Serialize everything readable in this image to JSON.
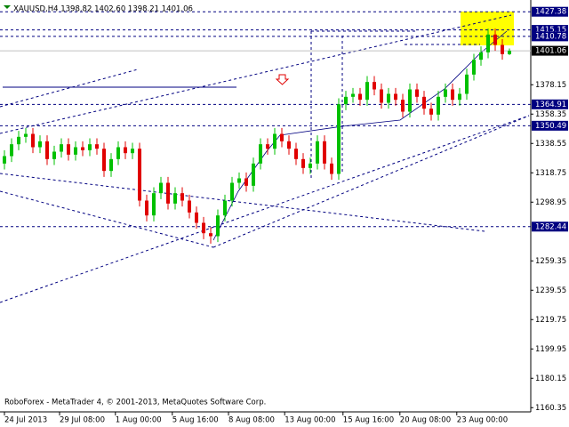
{
  "chart_data": {
    "type": "candlestick",
    "title": "XAUUSD,H4  1398.82 1402.60 1398.21 1401.06",
    "footer": "RoboForex - MetaTrader 4, © 2001-2013, MetaQuotes Software Corp.",
    "up_color": "#00c000",
    "down_color": "#e00000",
    "level_color": "#000080",
    "last_color": "#000000",
    "open": [
      1325,
      1330,
      1338,
      1343,
      1345,
      1336,
      1340,
      1328,
      1333,
      1338,
      1331,
      1336,
      1334,
      1338,
      1335,
      1320,
      1328,
      1336,
      1332,
      1335,
      1300,
      1290,
      1305,
      1312,
      1298,
      1305,
      1300,
      1292,
      1285,
      1278,
      1276,
      1290,
      1300,
      1312,
      1315,
      1310,
      1325,
      1338,
      1335,
      1345,
      1340,
      1335,
      1328,
      1322,
      1325,
      1340,
      1325,
      1318,
      1365,
      1370,
      1372,
      1368,
      1380,
      1375,
      1366,
      1372,
      1368,
      1360,
      1375,
      1370,
      1362,
      1358,
      1370,
      1375,
      1368,
      1372,
      1385,
      1395,
      1400,
      1412,
      1405,
      1398.82
    ],
    "high": [
      1334,
      1342,
      1347,
      1349,
      1349,
      1344,
      1344,
      1337,
      1342,
      1342,
      1340,
      1340,
      1342,
      1342,
      1339,
      1332,
      1340,
      1340,
      1339,
      1339,
      1304,
      1309,
      1316,
      1316,
      1309,
      1309,
      1304,
      1296,
      1289,
      1282,
      1294,
      1304,
      1316,
      1319,
      1319,
      1329,
      1342,
      1342,
      1349,
      1349,
      1344,
      1339,
      1332,
      1329,
      1344,
      1344,
      1329,
      1369,
      1374,
      1376,
      1376,
      1384,
      1384,
      1379,
      1376,
      1376,
      1372,
      1379,
      1379,
      1374,
      1366,
      1374,
      1379,
      1379,
      1376,
      1389,
      1399,
      1404,
      1416,
      1416,
      1409,
      1402.6
    ],
    "low": [
      1321,
      1326,
      1334,
      1339,
      1332,
      1332,
      1324,
      1324,
      1329,
      1327,
      1327,
      1330,
      1330,
      1331,
      1316,
      1316,
      1324,
      1328,
      1328,
      1296,
      1286,
      1286,
      1301,
      1294,
      1294,
      1296,
      1288,
      1281,
      1274,
      1271,
      1272,
      1286,
      1296,
      1308,
      1306,
      1306,
      1321,
      1331,
      1331,
      1336,
      1331,
      1324,
      1318,
      1318,
      1321,
      1321,
      1314,
      1314,
      1361,
      1366,
      1364,
      1364,
      1371,
      1362,
      1362,
      1364,
      1356,
      1356,
      1366,
      1358,
      1354,
      1354,
      1366,
      1364,
      1364,
      1368,
      1381,
      1391,
      1396,
      1401,
      1395,
      1398.21
    ],
    "close": [
      1330,
      1338,
      1343,
      1345,
      1336,
      1340,
      1328,
      1333,
      1338,
      1331,
      1336,
      1334,
      1338,
      1335,
      1320,
      1328,
      1336,
      1332,
      1335,
      1300,
      1290,
      1305,
      1312,
      1298,
      1305,
      1300,
      1292,
      1285,
      1278,
      1276,
      1290,
      1300,
      1312,
      1315,
      1310,
      1325,
      1338,
      1335,
      1345,
      1340,
      1335,
      1328,
      1322,
      1325,
      1340,
      1325,
      1318,
      1365,
      1370,
      1372,
      1368,
      1380,
      1375,
      1366,
      1372,
      1368,
      1360,
      1375,
      1370,
      1362,
      1358,
      1370,
      1375,
      1368,
      1372,
      1385,
      1395,
      1400,
      1412,
      1405,
      1398.82,
      1401.06
    ],
    "xlim": [
      0,
      71
    ],
    "xticks": [
      {
        "value": 0,
        "label": "24 Jul 2013"
      },
      {
        "value": 7.75,
        "label": "29 Jul 08:00"
      },
      {
        "value": 15.6,
        "label": "1 Aug 00:00"
      },
      {
        "value": 23.6,
        "label": "5 Aug 16:00"
      },
      {
        "value": 31.5,
        "label": "8 Aug 08:00"
      },
      {
        "value": 39.4,
        "label": "13 Aug 00:00"
      },
      {
        "value": 47.6,
        "label": "15 Aug 16:00"
      },
      {
        "value": 55.6,
        "label": "20 Aug 08:00"
      },
      {
        "value": 63.6,
        "label": "23 Aug 00:00"
      }
    ],
    "ylim": [
      1157.5,
      1435.3
    ],
    "yticks": [
      1378.15,
      1358.35,
      1338.55,
      1318.75,
      1298.95,
      1259.35,
      1239.55,
      1219.75,
      1199.95,
      1180.15,
      1160.35
    ],
    "levels": [
      1427.38,
      1415.15,
      1410.78,
      1364.91,
      1350.49,
      1282.44
    ],
    "last_price": 1401.06
  }
}
